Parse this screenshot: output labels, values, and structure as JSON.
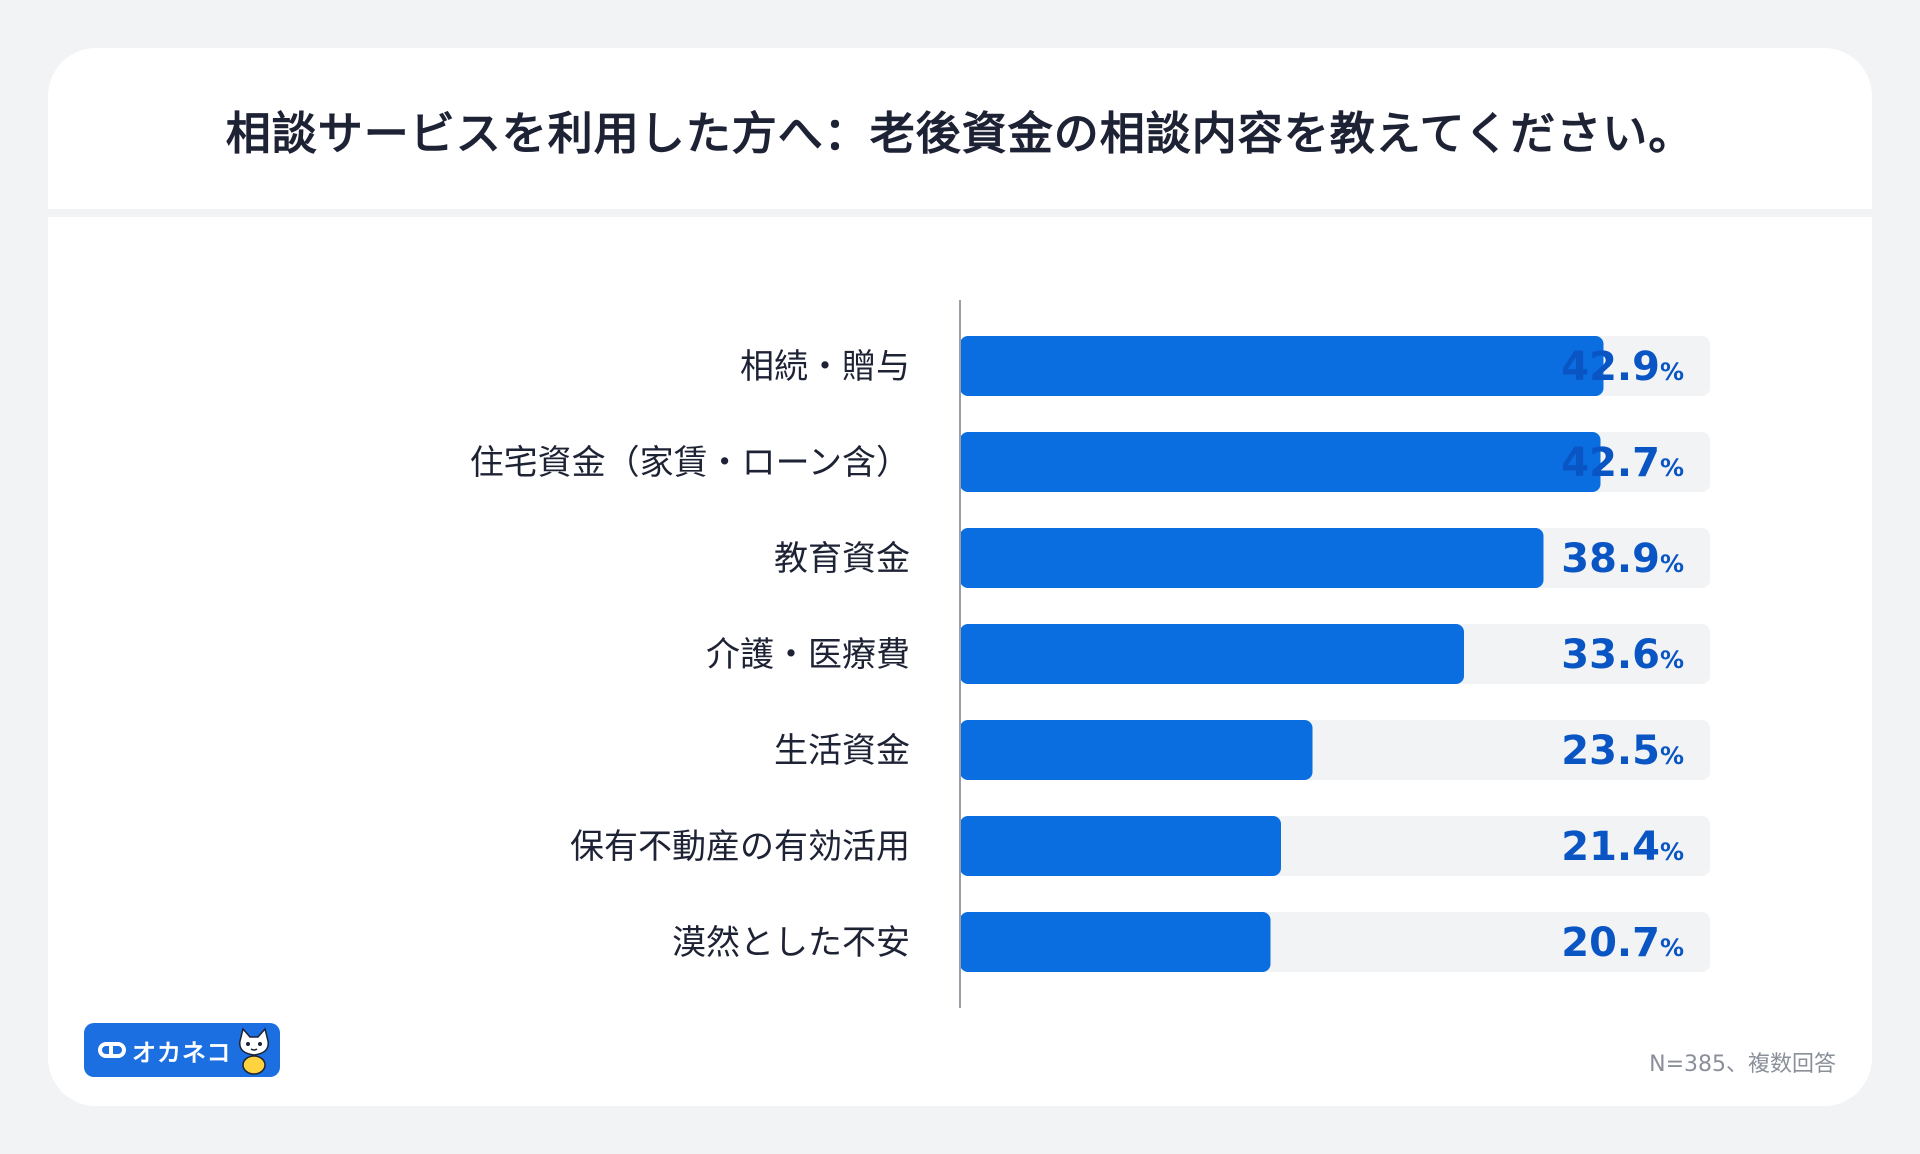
{
  "chart_data": {
    "type": "bar",
    "orientation": "horizontal",
    "title": "相談サービスを利用した方へ：老後資金の相談内容を教えてください。",
    "categories": [
      "相続・贈与",
      "住宅資金（家賃・ローン含）",
      "教育資金",
      "介護・医療費",
      "生活資金",
      "保有不動産の有効活用",
      "漠然とした不安"
    ],
    "values": [
      42.9,
      42.7,
      38.9,
      33.6,
      23.5,
      21.4,
      20.7
    ],
    "value_labels": [
      "42.9",
      "42.7",
      "38.9",
      "33.6",
      "23.5",
      "21.4",
      "20.7"
    ],
    "unit": "%",
    "xlim": [
      0,
      50
    ],
    "grid": false,
    "colors": {
      "bar": "#0a6de0",
      "track": "#f2f3f5",
      "value_text": "#0a55c4",
      "axis": "#9a9ea6"
    }
  },
  "logo": {
    "text": "オカネコ",
    "icon": "cat-mascot-icon"
  },
  "footnote": "N=385、複数回答"
}
